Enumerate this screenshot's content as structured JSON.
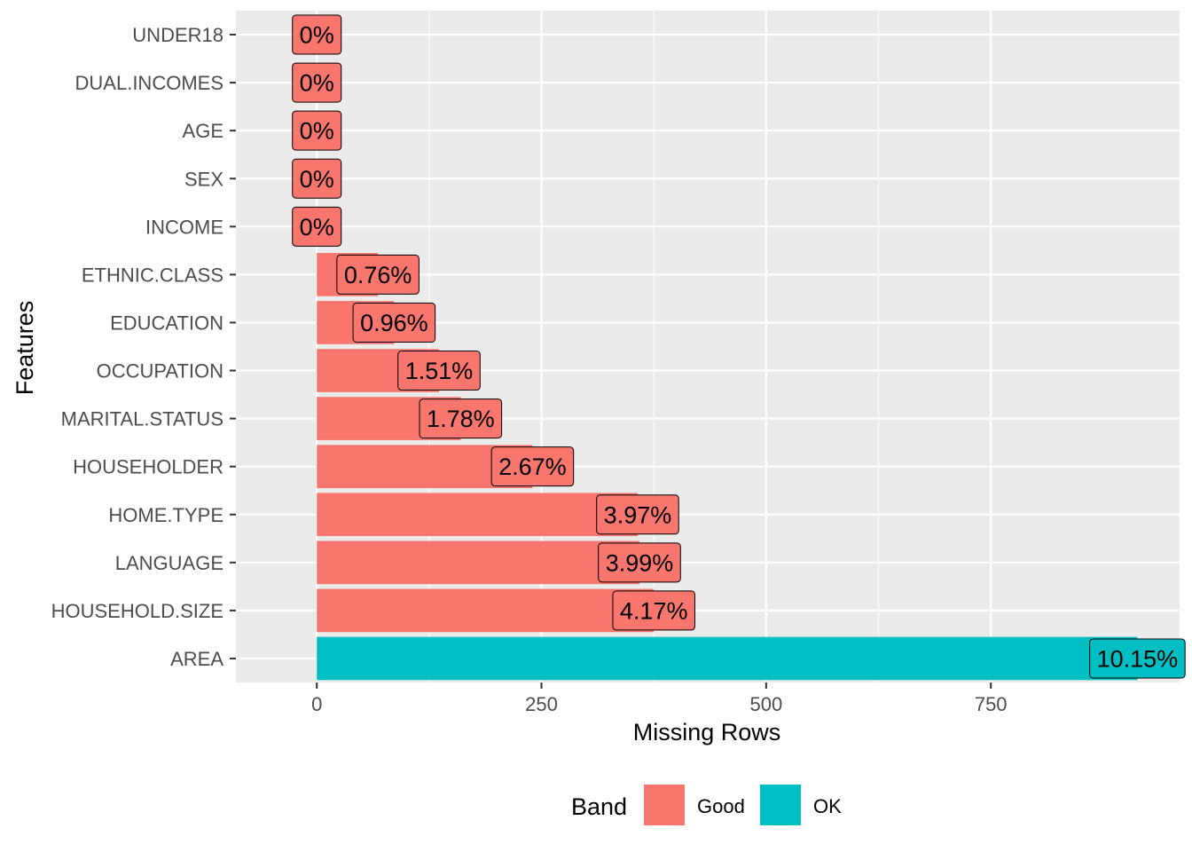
{
  "chart_data": {
    "type": "bar",
    "orientation": "horizontal",
    "xlabel": "Missing Rows",
    "ylabel": "Features",
    "xlim": [
      -90,
      960
    ],
    "x_ticks": [
      0,
      250,
      500,
      750
    ],
    "x_tick_labels": [
      "0",
      "250",
      "500",
      "750"
    ],
    "grid": true,
    "legend_position": "bottom",
    "legend_title": "Band",
    "bands": [
      {
        "name": "Good",
        "color": "#F8766D"
      },
      {
        "name": "OK",
        "color": "#00BFC4"
      }
    ],
    "categories": [
      "UNDER18",
      "DUAL.INCOMES",
      "AGE",
      "SEX",
      "INCOME",
      "ETHNIC.CLASS",
      "EDUCATION",
      "OCCUPATION",
      "MARITAL.STATUS",
      "HOUSEHOLDER",
      "HOME.TYPE",
      "LANGUAGE",
      "HOUSEHOLD.SIZE",
      "AREA"
    ],
    "values": [
      0,
      0,
      0,
      0,
      0,
      68,
      86,
      136,
      160,
      240,
      357,
      359,
      375,
      913
    ],
    "labels": [
      "0%",
      "0%",
      "0%",
      "0%",
      "0%",
      "0.76%",
      "0.96%",
      "1.51%",
      "1.78%",
      "2.67%",
      "3.97%",
      "3.99%",
      "4.17%",
      "10.15%"
    ],
    "band": [
      "Good",
      "Good",
      "Good",
      "Good",
      "Good",
      "Good",
      "Good",
      "Good",
      "Good",
      "Good",
      "Good",
      "Good",
      "Good",
      "OK"
    ]
  }
}
